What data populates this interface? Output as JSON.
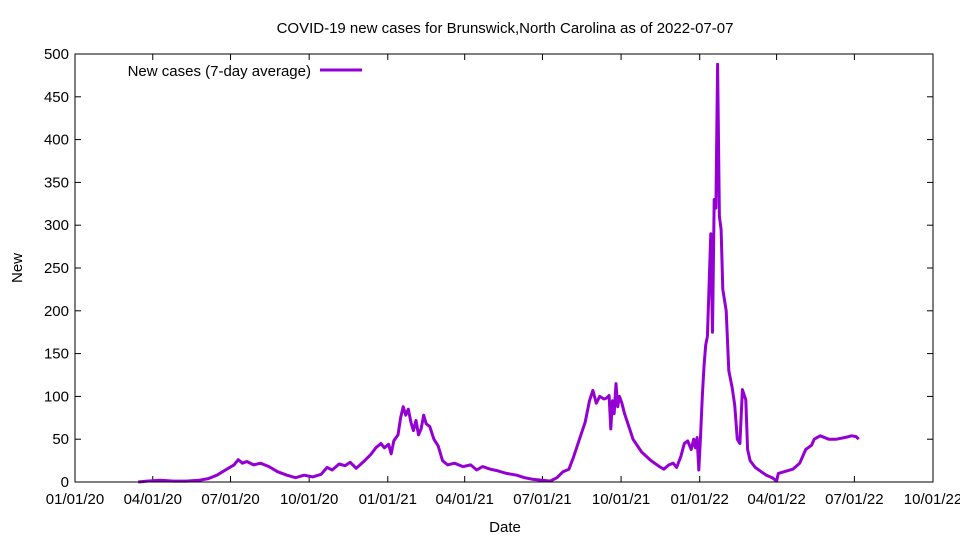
{
  "chart_data": {
    "type": "line",
    "title": "COVID-19 new cases for Brunswick,North Carolina as of 2022-07-07",
    "xlabel": "Date",
    "ylabel": "New",
    "xlim": [
      "2020-01-01",
      "2022-10-01"
    ],
    "ylim": [
      0,
      500
    ],
    "x_ticks": [
      "01/01/20",
      "04/01/20",
      "07/01/20",
      "10/01/20",
      "01/01/21",
      "04/01/21",
      "07/01/21",
      "10/01/21",
      "01/01/22",
      "04/01/22",
      "07/01/22",
      "10/01/22"
    ],
    "y_ticks": [
      "0",
      "50",
      "100",
      "150",
      "200",
      "250",
      "300",
      "350",
      "400",
      "450",
      "500"
    ],
    "grid": false,
    "legend_position": "top-left",
    "series": [
      {
        "name": "New cases (7-day average)",
        "color": "#9400d3",
        "points": [
          [
            "2020-03-15",
            0
          ],
          [
            "2020-03-25",
            1
          ],
          [
            "2020-04-10",
            2
          ],
          [
            "2020-04-25",
            1
          ],
          [
            "2020-05-10",
            1
          ],
          [
            "2020-05-25",
            2
          ],
          [
            "2020-06-05",
            4
          ],
          [
            "2020-06-15",
            8
          ],
          [
            "2020-06-25",
            14
          ],
          [
            "2020-07-05",
            20
          ],
          [
            "2020-07-10",
            26
          ],
          [
            "2020-07-15",
            22
          ],
          [
            "2020-07-20",
            24
          ],
          [
            "2020-07-28",
            20
          ],
          [
            "2020-08-05",
            22
          ],
          [
            "2020-08-15",
            18
          ],
          [
            "2020-08-25",
            12
          ],
          [
            "2020-09-05",
            8
          ],
          [
            "2020-09-15",
            5
          ],
          [
            "2020-09-25",
            8
          ],
          [
            "2020-10-05",
            6
          ],
          [
            "2020-10-15",
            9
          ],
          [
            "2020-10-22",
            17
          ],
          [
            "2020-10-28",
            14
          ],
          [
            "2020-11-05",
            21
          ],
          [
            "2020-11-12",
            19
          ],
          [
            "2020-11-18",
            23
          ],
          [
            "2020-11-25",
            16
          ],
          [
            "2020-12-05",
            25
          ],
          [
            "2020-12-12",
            32
          ],
          [
            "2020-12-18",
            40
          ],
          [
            "2020-12-24",
            45
          ],
          [
            "2020-12-28",
            40
          ],
          [
            "2021-01-02",
            44
          ],
          [
            "2021-01-05",
            33
          ],
          [
            "2021-01-08",
            48
          ],
          [
            "2021-01-13",
            55
          ],
          [
            "2021-01-16",
            75
          ],
          [
            "2021-01-19",
            88
          ],
          [
            "2021-01-22",
            78
          ],
          [
            "2021-01-25",
            85
          ],
          [
            "2021-01-28",
            70
          ],
          [
            "2021-01-31",
            60
          ],
          [
            "2021-02-03",
            72
          ],
          [
            "2021-02-06",
            55
          ],
          [
            "2021-02-09",
            62
          ],
          [
            "2021-02-12",
            78
          ],
          [
            "2021-02-15",
            68
          ],
          [
            "2021-02-19",
            65
          ],
          [
            "2021-02-24",
            50
          ],
          [
            "2021-03-01",
            42
          ],
          [
            "2021-03-06",
            25
          ],
          [
            "2021-03-12",
            20
          ],
          [
            "2021-03-20",
            22
          ],
          [
            "2021-03-30",
            18
          ],
          [
            "2021-04-08",
            20
          ],
          [
            "2021-04-15",
            14
          ],
          [
            "2021-04-22",
            18
          ],
          [
            "2021-05-01",
            15
          ],
          [
            "2021-05-10",
            13
          ],
          [
            "2021-05-20",
            10
          ],
          [
            "2021-06-01",
            8
          ],
          [
            "2021-06-10",
            5
          ],
          [
            "2021-06-20",
            3
          ],
          [
            "2021-07-01",
            2
          ],
          [
            "2021-07-10",
            1
          ],
          [
            "2021-07-18",
            5
          ],
          [
            "2021-07-25",
            12
          ],
          [
            "2021-08-01",
            15
          ],
          [
            "2021-08-06",
            28
          ],
          [
            "2021-08-10",
            40
          ],
          [
            "2021-08-15",
            55
          ],
          [
            "2021-08-20",
            70
          ],
          [
            "2021-08-25",
            95
          ],
          [
            "2021-08-29",
            107
          ],
          [
            "2021-09-02",
            92
          ],
          [
            "2021-09-06",
            100
          ],
          [
            "2021-09-11",
            97
          ],
          [
            "2021-09-14",
            98
          ],
          [
            "2021-09-17",
            101
          ],
          [
            "2021-09-19",
            62
          ],
          [
            "2021-09-21",
            95
          ],
          [
            "2021-09-23",
            80
          ],
          [
            "2021-09-25",
            115
          ],
          [
            "2021-09-27",
            88
          ],
          [
            "2021-09-29",
            100
          ],
          [
            "2021-10-02",
            92
          ],
          [
            "2021-10-05",
            80
          ],
          [
            "2021-10-10",
            65
          ],
          [
            "2021-10-15",
            50
          ],
          [
            "2021-10-25",
            35
          ],
          [
            "2021-11-05",
            25
          ],
          [
            "2021-11-15",
            18
          ],
          [
            "2021-11-20",
            15
          ],
          [
            "2021-11-26",
            20
          ],
          [
            "2021-12-01",
            22
          ],
          [
            "2021-12-05",
            17
          ],
          [
            "2021-12-10",
            30
          ],
          [
            "2021-12-14",
            45
          ],
          [
            "2021-12-18",
            48
          ],
          [
            "2021-12-22",
            38
          ],
          [
            "2021-12-25",
            50
          ],
          [
            "2021-12-27",
            40
          ],
          [
            "2021-12-29",
            52
          ],
          [
            "2021-12-31",
            14
          ],
          [
            "2022-01-02",
            55
          ],
          [
            "2022-01-04",
            100
          ],
          [
            "2022-01-06",
            135
          ],
          [
            "2022-01-08",
            160
          ],
          [
            "2022-01-10",
            170
          ],
          [
            "2022-01-12",
            230
          ],
          [
            "2022-01-14",
            290
          ],
          [
            "2022-01-16",
            175
          ],
          [
            "2022-01-18",
            330
          ],
          [
            "2022-01-20",
            320
          ],
          [
            "2022-01-22",
            488
          ],
          [
            "2022-01-24",
            310
          ],
          [
            "2022-01-26",
            295
          ],
          [
            "2022-01-28",
            225
          ],
          [
            "2022-02-01",
            200
          ],
          [
            "2022-02-04",
            130
          ],
          [
            "2022-02-08",
            110
          ],
          [
            "2022-02-11",
            90
          ],
          [
            "2022-02-14",
            50
          ],
          [
            "2022-02-17",
            45
          ],
          [
            "2022-02-20",
            108
          ],
          [
            "2022-02-24",
            96
          ],
          [
            "2022-02-26",
            38
          ],
          [
            "2022-03-01",
            25
          ],
          [
            "2022-03-07",
            17
          ],
          [
            "2022-03-14",
            12
          ],
          [
            "2022-03-20",
            8
          ],
          [
            "2022-03-27",
            5
          ],
          [
            "2022-04-01",
            1
          ],
          [
            "2022-04-03",
            10
          ],
          [
            "2022-04-10",
            12
          ],
          [
            "2022-04-20",
            15
          ],
          [
            "2022-04-28",
            22
          ],
          [
            "2022-05-05",
            38
          ],
          [
            "2022-05-12",
            43
          ],
          [
            "2022-05-15",
            50
          ],
          [
            "2022-05-22",
            54
          ],
          [
            "2022-06-01",
            50
          ],
          [
            "2022-06-10",
            50
          ],
          [
            "2022-06-20",
            52
          ],
          [
            "2022-06-28",
            54
          ],
          [
            "2022-07-03",
            53
          ],
          [
            "2022-07-06",
            50
          ]
        ]
      }
    ]
  }
}
